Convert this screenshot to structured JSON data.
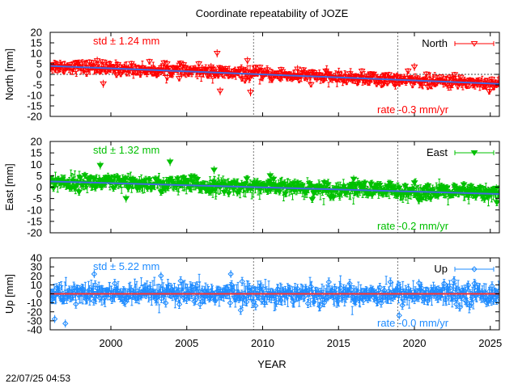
{
  "title": "Coordinate repeatability of JOZE",
  "timestamp": "22/07/25 04:53",
  "chart_data": [
    {
      "type": "scatter",
      "name": "north",
      "legend": "North",
      "marker": "triangle-down-open",
      "color": "#ff0000",
      "trend_color": "#4169e1",
      "ylabel": "North [mm]",
      "std_label": "std ± 1.24 mm",
      "rate_label": "rate -0.3 mm/yr",
      "xlim": [
        1996.0,
        2025.6
      ],
      "ylim": [
        -20,
        20
      ],
      "yticks": [
        "20",
        "15",
        "10",
        "5",
        "0",
        "-5",
        "-10",
        "-15",
        "-20"
      ],
      "trend": {
        "x": [
          1996.0,
          2025.6
        ],
        "y": [
          4.0,
          -4.5
        ]
      },
      "band_halfwidth": 2.5,
      "outliers": [
        {
          "x": 1999.1,
          "y": 6.5
        },
        {
          "x": 2003.7,
          "y": 5.0
        },
        {
          "x": 2006.6,
          "y": 3.5
        },
        {
          "x": 2007.0,
          "y": 10.0
        },
        {
          "x": 2007.2,
          "y": -8.0
        },
        {
          "x": 2009.0,
          "y": 6.5
        },
        {
          "x": 2009.2,
          "y": -8.5
        },
        {
          "x": 2012.3,
          "y": 2.5
        },
        {
          "x": 2020.0,
          "y": 3.5
        },
        {
          "x": 1999.5,
          "y": -4.5
        },
        {
          "x": 2025.3,
          "y": -4.0
        }
      ]
    },
    {
      "type": "scatter",
      "name": "east",
      "legend": "East",
      "marker": "triangle-down-filled",
      "color": "#00c000",
      "trend_color": "#4169e1",
      "ylabel": "East [mm]",
      "std_label": "std ± 1.32 mm",
      "rate_label": "rate -0.2 mm/yr",
      "xlim": [
        1996.0,
        2025.6
      ],
      "ylim": [
        -20,
        20
      ],
      "yticks": [
        "20",
        "15",
        "10",
        "5",
        "0",
        "-5",
        "-10",
        "-15",
        "-20"
      ],
      "trend": {
        "x": [
          1996.0,
          2025.6
        ],
        "y": [
          2.5,
          -3.0
        ]
      },
      "band_halfwidth": 3.0,
      "outliers": [
        {
          "x": 1999.3,
          "y": 9.5
        },
        {
          "x": 2003.9,
          "y": 11.0
        },
        {
          "x": 2006.8,
          "y": 7.5
        },
        {
          "x": 2010.5,
          "y": 5.0
        },
        {
          "x": 2001.0,
          "y": -5.0
        },
        {
          "x": 2016.0,
          "y": 3.5
        },
        {
          "x": 2025.4,
          "y": -0.5
        }
      ]
    },
    {
      "type": "scatter",
      "name": "up",
      "legend": "Up",
      "marker": "diamond-open",
      "color": "#1e8bff",
      "trend_color": "#ff3030",
      "ylabel": "Up [mm]",
      "std_label": "std ± 5.22 mm",
      "rate_label": "rate -0.0 mm/yr",
      "xlim": [
        1996.0,
        2025.6
      ],
      "ylim": [
        -40,
        40
      ],
      "yticks": [
        "40",
        "30",
        "20",
        "10",
        "0",
        "-10",
        "-20",
        "-30",
        "-40"
      ],
      "trend": {
        "x": [
          1996.0,
          2025.6
        ],
        "y": [
          0.0,
          0.0
        ]
      },
      "band_halfwidth": 10.0,
      "outliers": [
        {
          "x": 1996.3,
          "y": -28.0
        },
        {
          "x": 1997.0,
          "y": -33.0
        },
        {
          "x": 1998.9,
          "y": 22.0
        },
        {
          "x": 2003.3,
          "y": 20.0
        },
        {
          "x": 2007.9,
          "y": 22.0
        },
        {
          "x": 2019.0,
          "y": -24.0
        },
        {
          "x": 2020.3,
          "y": 12.0
        },
        {
          "x": 2022.6,
          "y": 15.0
        },
        {
          "x": 2023.0,
          "y": -15.0
        },
        {
          "x": 2025.3,
          "y": 3.0
        }
      ]
    }
  ],
  "xaxis": {
    "label": "YEAR",
    "ticks": [
      {
        "value": 2000,
        "label": "2000"
      },
      {
        "value": 2005,
        "label": "2005"
      },
      {
        "value": 2010,
        "label": "2010"
      },
      {
        "value": 2015,
        "label": "2015"
      },
      {
        "value": 2020,
        "label": "2020"
      },
      {
        "value": 2025,
        "label": "2025"
      }
    ],
    "event_lines": [
      2009.4,
      2018.9
    ]
  }
}
